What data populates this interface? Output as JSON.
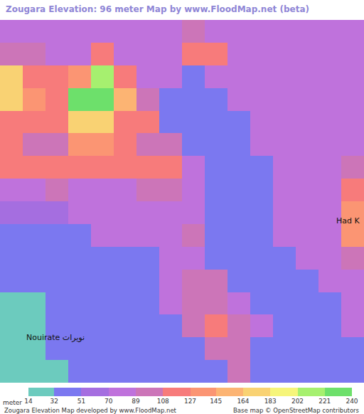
{
  "chart_data": {
    "type": "heatmap",
    "title": "Zougara Elevation: 96 meter Map by www.FloodMap.net (beta)",
    "tick_labels": false,
    "cells": [
      [
        80,
        85,
        80,
        80,
        80,
        80,
        85,
        80,
        95,
        80,
        80,
        80,
        80,
        75,
        75,
        75
      ],
      [
        95,
        90,
        85,
        80,
        110,
        85,
        80,
        80,
        115,
        110,
        80,
        80,
        75,
        75,
        80,
        80
      ],
      [
        180,
        120,
        115,
        140,
        215,
        115,
        85,
        80,
        45,
        80,
        75,
        75,
        75,
        80,
        75,
        75
      ],
      [
        170,
        130,
        125,
        230,
        230,
        150,
        100,
        45,
        45,
        45,
        75,
        80,
        75,
        75,
        80,
        75
      ],
      [
        120,
        115,
        120,
        175,
        180,
        120,
        115,
        45,
        45,
        45,
        50,
        75,
        75,
        80,
        75,
        80
      ],
      [
        110,
        90,
        95,
        130,
        130,
        125,
        100,
        95,
        45,
        45,
        45,
        80,
        75,
        75,
        75,
        80
      ],
      [
        115,
        110,
        120,
        115,
        120,
        120,
        110,
        120,
        85,
        45,
        45,
        40,
        75,
        75,
        80,
        95
      ],
      [
        80,
        80,
        90,
        85,
        80,
        80,
        90,
        95,
        85,
        40,
        40,
        40,
        80,
        75,
        80,
        120
      ],
      [
        55,
        60,
        65,
        75,
        80,
        75,
        80,
        85,
        80,
        45,
        45,
        40,
        75,
        80,
        75,
        140
      ],
      [
        45,
        45,
        45,
        50,
        75,
        75,
        80,
        80,
        90,
        45,
        45,
        45,
        80,
        75,
        80,
        140
      ],
      [
        40,
        40,
        45,
        45,
        45,
        40,
        45,
        80,
        85,
        45,
        40,
        40,
        45,
        80,
        85,
        100
      ],
      [
        40,
        40,
        40,
        40,
        40,
        45,
        40,
        80,
        95,
        90,
        40,
        45,
        40,
        45,
        80,
        80
      ],
      [
        25,
        25,
        40,
        40,
        40,
        40,
        45,
        80,
        95,
        95,
        85,
        45,
        45,
        40,
        45,
        85
      ],
      [
        25,
        25,
        45,
        40,
        40,
        40,
        45,
        45,
        90,
        110,
        100,
        75,
        40,
        40,
        40,
        85
      ],
      [
        25,
        20,
        40,
        40,
        40,
        40,
        40,
        45,
        45,
        95,
        105,
        45,
        40,
        45,
        40,
        40
      ],
      [
        25,
        25,
        30,
        40,
        40,
        40,
        40,
        40,
        45,
        45,
        90,
        40,
        40,
        40,
        40,
        40
      ]
    ],
    "colorbar": {
      "title": "meter",
      "range": [
        14,
        240
      ],
      "ticks": [
        14,
        32,
        51,
        70,
        89,
        108,
        127,
        145,
        164,
        183,
        202,
        221,
        240
      ],
      "colors": [
        "#6ccbbe",
        "#7b78f0",
        "#a56ee0",
        "#bf72dc",
        "#cc75b8",
        "#f77b7b",
        "#fb9573",
        "#fcb473",
        "#f9d273",
        "#f6f57a",
        "#a6f06f",
        "#6de06b"
      ]
    },
    "annotations": [
      "Had K",
      "Nouirate نويرات"
    ],
    "credits": [
      "Zougara Elevation Map developed by www.FloodMap.net",
      "Base map © OpenStreetMap contributors"
    ]
  }
}
